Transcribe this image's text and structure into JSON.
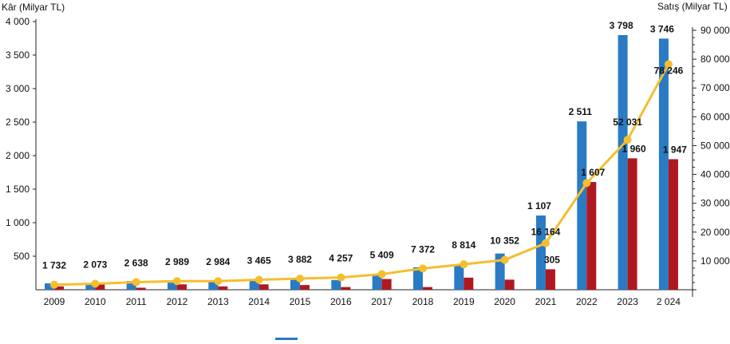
{
  "chart_data": {
    "type": "bar+line",
    "categories": [
      "2009",
      "2010",
      "2011",
      "2012",
      "2013",
      "2014",
      "2015",
      "2016",
      "2017",
      "2018",
      "2019",
      "2020",
      "2021",
      "2022",
      "2023",
      "2 024"
    ],
    "ylabel_left": "Kâr (Milyar TL)",
    "ylabel_right": "Satış (Milyar TL)",
    "ylim_left": [
      0,
      4000
    ],
    "ylim_right": [
      0,
      90000
    ],
    "left_ticks": [
      "500",
      "1 000",
      "1 500",
      "2 000",
      "2 500",
      "3 000",
      "3 500",
      "4 000"
    ],
    "left_tick_values": [
      500,
      1000,
      1500,
      2000,
      2500,
      3000,
      3500,
      4000
    ],
    "right_ticks": [
      "10 000",
      "20 000",
      "30 000",
      "40 000",
      "50 000",
      "60 000",
      "70 000",
      "80 000",
      "90 000"
    ],
    "right_tick_values": [
      10000,
      20000,
      30000,
      40000,
      50000,
      60000,
      70000,
      80000,
      90000
    ],
    "grid": false,
    "legend_position": "bottom",
    "series": [
      {
        "axis": "left",
        "kind": "bar",
        "color": "#2a7bc4",
        "values": [
          95,
          85,
          130,
          105,
          120,
          155,
          155,
          145,
          225,
          335,
          380,
          540,
          1107,
          2511,
          3798,
          3746
        ],
        "labels": [
          "",
          "",
          "",
          "",
          "",
          "",
          "",
          "",
          "",
          "",
          "",
          "",
          "1 107",
          "2 511",
          "3 798",
          "3 746"
        ]
      },
      {
        "axis": "left",
        "kind": "bar",
        "color": "#b01820",
        "values": [
          50,
          85,
          30,
          80,
          50,
          80,
          70,
          40,
          160,
          40,
          180,
          150,
          305,
          1607,
          1960,
          1947
        ],
        "labels": [
          "",
          "",
          "",
          "",
          "",
          "",
          "",
          "",
          "",
          "",
          "",
          "",
          "305",
          "1 607",
          "1 960",
          "1 947"
        ]
      },
      {
        "axis": "right",
        "kind": "line",
        "color": "#f5be2e",
        "values": [
          1732,
          2073,
          2638,
          2989,
          2984,
          3465,
          3882,
          4257,
          5409,
          7372,
          8814,
          10352,
          16164,
          37000,
          52031,
          78246
        ],
        "labels": [
          "1 732",
          "2 073",
          "2 638",
          "2 989",
          "2 984",
          "3 465",
          "3 882",
          "4 257",
          "5 409",
          "7 372",
          "8 814",
          "10 352",
          "16 164",
          "",
          "52 031",
          "78 246"
        ]
      }
    ]
  }
}
